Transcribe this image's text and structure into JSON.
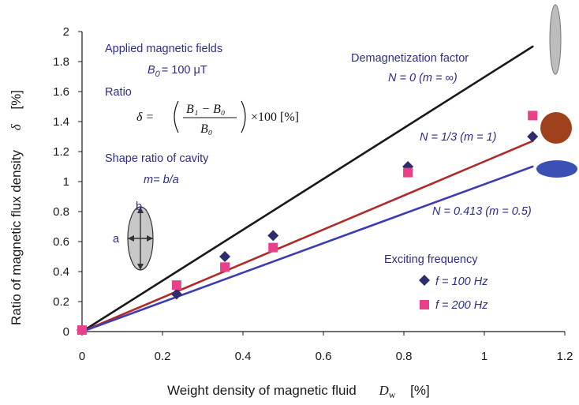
{
  "chart_data": {
    "type": "scatter",
    "xlabel": "Weight density of magnetic fluid",
    "xlabel_symbol": "D",
    "xlabel_symbol_sub": "w",
    "xlabel_unit": "[%]",
    "ylabel": "Ratio of magnetic flux density",
    "ylabel_symbol": "δ",
    "ylabel_unit": "[%]",
    "xlim": [
      0,
      1.2
    ],
    "ylim": [
      0,
      2
    ],
    "x_ticks": [
      "0",
      "0.2",
      "0.4",
      "0.6",
      "0.8",
      "1",
      "1.2"
    ],
    "y_ticks": [
      "0",
      "0.2",
      "0.4",
      "0.6",
      "0.8",
      "1",
      "1.2",
      "1.4",
      "1.6",
      "1.8",
      "2"
    ],
    "grid": false,
    "lines": [
      {
        "name": "N = 0 (m = ∞)",
        "color": "#1a1a1a",
        "x": [
          0,
          1.12
        ],
        "y": [
          0,
          1.9
        ]
      },
      {
        "name": "N = 1/3 (m = 1)",
        "color": "#b02a2a",
        "x": [
          0,
          1.12
        ],
        "y": [
          0,
          1.27
        ]
      },
      {
        "name": "N = 0.413 (m = 0.5)",
        "color": "#3c3cb4",
        "x": [
          0,
          1.12
        ],
        "y": [
          0,
          1.1
        ]
      }
    ],
    "series": [
      {
        "name": "f = 100 Hz",
        "marker": "diamond",
        "color": "#2d2d6e",
        "x": [
          0,
          0.235,
          0.355,
          0.475,
          0.81,
          1.12
        ],
        "y": [
          0.01,
          0.25,
          0.5,
          0.64,
          1.1,
          1.3
        ]
      },
      {
        "name": "f = 200 Hz",
        "marker": "square",
        "color": "#e8418a",
        "x": [
          0,
          0.235,
          0.355,
          0.475,
          0.81,
          1.12
        ],
        "y": [
          0.01,
          0.31,
          0.43,
          0.56,
          1.06,
          1.44
        ]
      }
    ]
  },
  "annotations": {
    "applied_fields": "Applied magnetic fields",
    "b0_symbol": "B",
    "b0_sub": "0",
    "b0_value": "= 100 μT",
    "ratio": "Ratio",
    "formula_lhs": "δ = ",
    "formula_num": "B₁ − B₀",
    "formula_den": "B₀",
    "formula_rhs": "×100 [%]",
    "shape_ratio": "Shape ratio of cavity",
    "shape_formula": "m= b/a",
    "diagram_label_a": "a",
    "diagram_label_b": "b",
    "demag_title": "Demagnetization factor",
    "n0_label": "N = 0 (m = ∞)",
    "n13_label": "N = 1/3  (m = 1)",
    "n0413_label": "N = 0.413 (m = 0.5)",
    "exciting_freq": "Exciting frequency",
    "f100": "f = 100 Hz",
    "f200": "f = 200 Hz"
  },
  "colors": {
    "shape_needle": "#bdbdbd",
    "shape_sphere": "#a0411e",
    "shape_oblate": "#3c4fb4",
    "cavity_fill": "#c8c8c8"
  }
}
